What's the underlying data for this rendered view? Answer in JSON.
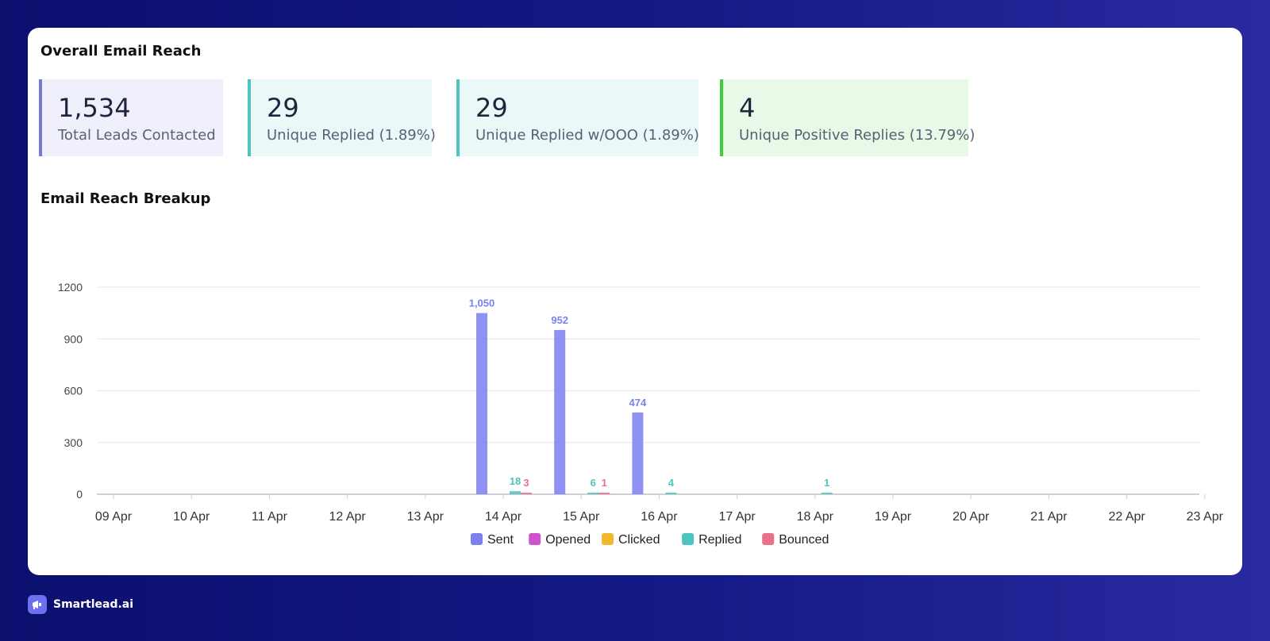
{
  "overall": {
    "title": "Overall Email Reach"
  },
  "stats": [
    {
      "value": "1,534",
      "label": "Total Leads Contacted",
      "accent": "#7479d9",
      "bg": "#f0f0fc"
    },
    {
      "value": "29",
      "label": "Unique Replied (1.89%)",
      "accent": "#4dc4c0",
      "bg": "#eaf8f8"
    },
    {
      "value": "29",
      "label": "Unique Replied w/OOO (1.89%)",
      "accent": "#4dc4c0",
      "bg": "#eaf8f8"
    },
    {
      "value": "4",
      "label": "Unique Positive Replies (13.79%)",
      "accent": "#3ccf3c",
      "bg": "#e9f9e7"
    }
  ],
  "breakup": {
    "title": "Email Reach Breakup"
  },
  "footer": {
    "brand": "Smartlead.ai"
  },
  "chart_data": {
    "type": "bar",
    "categories": [
      "09 Apr",
      "10 Apr",
      "11 Apr",
      "12 Apr",
      "13 Apr",
      "14 Apr",
      "15 Apr",
      "16 Apr",
      "17 Apr",
      "18 Apr",
      "19 Apr",
      "20 Apr",
      "21 Apr",
      "22 Apr",
      "23 Apr"
    ],
    "series": [
      {
        "name": "Sent",
        "color": "#7b7ff0",
        "values": [
          0,
          0,
          0,
          0,
          0,
          1050,
          952,
          474,
          0,
          0,
          0,
          0,
          0,
          0,
          0
        ]
      },
      {
        "name": "Opened",
        "color": "#cc55cc",
        "values": [
          0,
          0,
          0,
          0,
          0,
          0,
          0,
          0,
          0,
          0,
          0,
          0,
          0,
          0,
          0
        ]
      },
      {
        "name": "Clicked",
        "color": "#f0b830",
        "values": [
          0,
          0,
          0,
          0,
          0,
          0,
          0,
          0,
          0,
          0,
          0,
          0,
          0,
          0,
          0
        ]
      },
      {
        "name": "Replied",
        "color": "#4dc4c0",
        "values": [
          0,
          0,
          0,
          0,
          0,
          18,
          6,
          4,
          0,
          1,
          0,
          0,
          0,
          0,
          0
        ]
      },
      {
        "name": "Bounced",
        "color": "#e8708a",
        "values": [
          0,
          0,
          0,
          0,
          0,
          3,
          1,
          0,
          0,
          0,
          0,
          0,
          0,
          0,
          0
        ]
      }
    ],
    "data_labels": [
      {
        "series": "Sent",
        "category": "14 Apr",
        "text": "1,050"
      },
      {
        "series": "Sent",
        "category": "15 Apr",
        "text": "952"
      },
      {
        "series": "Sent",
        "category": "16 Apr",
        "text": "474"
      },
      {
        "series": "Replied",
        "category": "14 Apr",
        "text": "18"
      },
      {
        "series": "Bounced",
        "category": "14 Apr",
        "text": "3"
      },
      {
        "series": "Replied",
        "category": "15 Apr",
        "text": "6"
      },
      {
        "series": "Bounced",
        "category": "15 Apr",
        "text": "1"
      },
      {
        "series": "Replied",
        "category": "16 Apr",
        "text": "4"
      },
      {
        "series": "Replied",
        "category": "18 Apr",
        "text": "1"
      }
    ],
    "yticks": [
      "0",
      "300",
      "600",
      "900",
      "1200"
    ],
    "ylim": [
      0,
      1200
    ],
    "grid": true,
    "legend_position": "bottom-center"
  }
}
